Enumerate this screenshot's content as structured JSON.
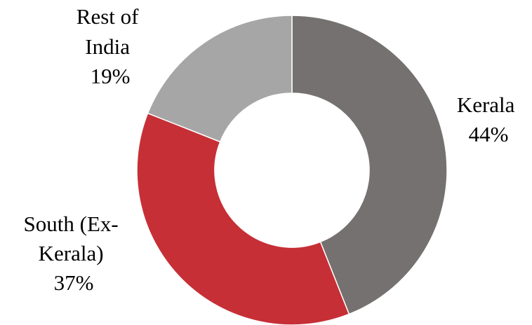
{
  "chart_data": {
    "type": "pie",
    "donut": true,
    "slices": [
      {
        "label": "Kerala",
        "value": 44,
        "color": "#767171"
      },
      {
        "label": "South (Ex-Kerala)",
        "value": 37,
        "color": "#C62F36"
      },
      {
        "label": "Rest of India",
        "value": 19,
        "color": "#A6A6A6"
      }
    ],
    "start_angle_deg": 0,
    "direction": "clockwise",
    "labels": {
      "kerala": {
        "lines": [
          "Kerala",
          "44%"
        ]
      },
      "south": {
        "lines": [
          "South (Ex-",
          "Kerala)",
          "37%"
        ]
      },
      "rest": {
        "lines": [
          "Rest of",
          "India",
          "19%"
        ]
      }
    }
  }
}
